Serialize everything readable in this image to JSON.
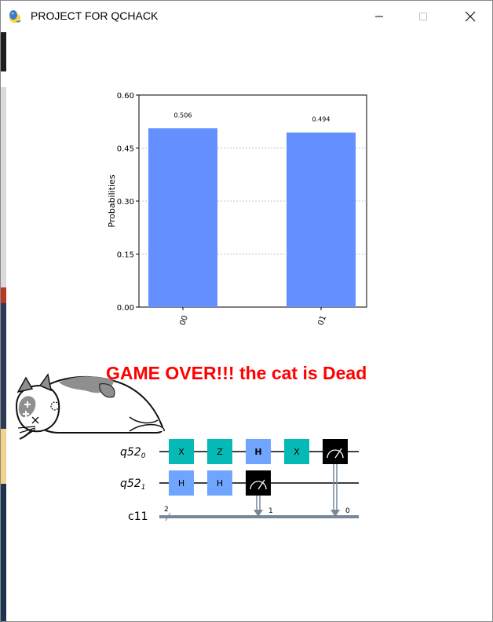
{
  "window": {
    "title": "PROJECT FOR QCHACK"
  },
  "chart_data": {
    "type": "bar",
    "categories": [
      "00",
      "01"
    ],
    "values": [
      0.506,
      0.494
    ],
    "value_labels": [
      "0.506",
      "0.494"
    ],
    "ylabel": "Probabilities",
    "ylim": [
      0,
      0.6
    ],
    "yticks": [
      "0.00",
      "0.15",
      "0.30",
      "0.45",
      "0.60"
    ],
    "bar_color": "#648fff",
    "grid": true
  },
  "message": {
    "text": "GAME OVER!!! the cat is Dead",
    "color": "#ff0000"
  },
  "circuit": {
    "qubit0_label": "q52",
    "qubit0_sub": "0",
    "qubit1_label": "q52",
    "qubit1_sub": "1",
    "creg_label": "c11",
    "creg_size": "2",
    "q0_gates": [
      "X",
      "Z",
      "H",
      "X"
    ],
    "q1_gates": [
      "H",
      "H"
    ],
    "measure_q1_bit": "1",
    "measure_q0_bit": "0",
    "colors": {
      "x_gate": "#05bab6",
      "z_gate": "#05bab6",
      "h_gate": "#6fa4ff",
      "measure": "#000000",
      "classical_wire": "#778899"
    }
  }
}
